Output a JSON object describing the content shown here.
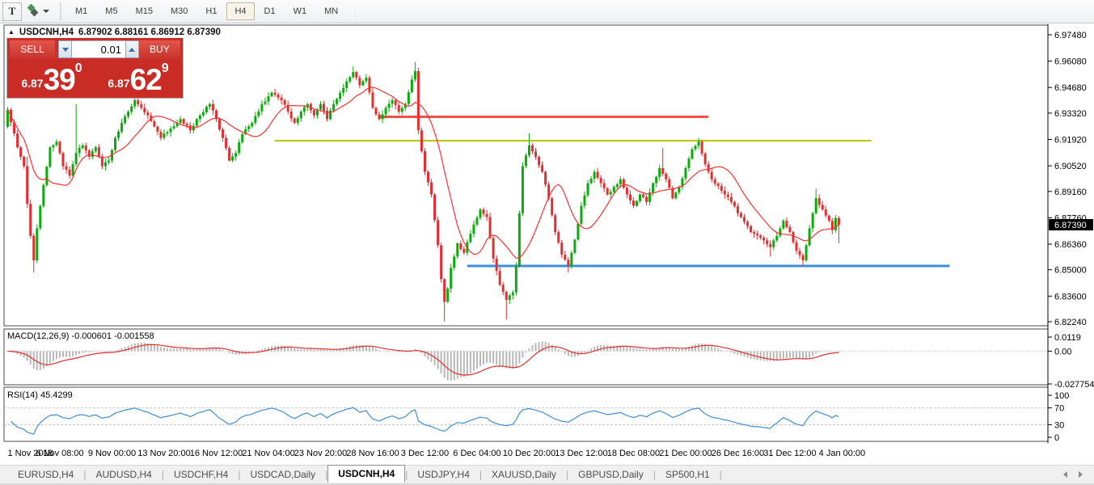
{
  "toolbar": {
    "text_tool_label": "T",
    "timeframes": [
      {
        "label": "M1",
        "active": false
      },
      {
        "label": "M5",
        "active": false
      },
      {
        "label": "M15",
        "active": false
      },
      {
        "label": "M30",
        "active": false
      },
      {
        "label": "H1",
        "active": false
      },
      {
        "label": "H4",
        "active": true
      },
      {
        "label": "D1",
        "active": false
      },
      {
        "label": "W1",
        "active": false
      },
      {
        "label": "MN",
        "active": false
      }
    ]
  },
  "chart": {
    "title_symbol": "USDCNH,H4",
    "title_ohlc": "6.87902 6.88161 6.86912 6.87390",
    "price_badge": "6.87390"
  },
  "trade_panel": {
    "sell_label": "SELL",
    "buy_label": "BUY",
    "volume": "0.01",
    "sell_price": {
      "small": "6.87",
      "big": "39",
      "sup": "0"
    },
    "buy_price": {
      "small": "6.87",
      "big": "62",
      "sup": "9"
    }
  },
  "macd_panel": {
    "label": "MACD(12,26,9)",
    "values": "-0.000601 -0.001558"
  },
  "rsi_panel": {
    "label": "RSI(14)",
    "value": "45.4299"
  },
  "tabs": [
    {
      "label": "EURUSD,H4",
      "active": false
    },
    {
      "label": "AUDUSD,H4",
      "active": false
    },
    {
      "label": "USDCHF,H4",
      "active": false
    },
    {
      "label": "USDCAD,Daily",
      "active": false
    },
    {
      "label": "USDCNH,H4",
      "active": true
    },
    {
      "label": "USDJPY,H4",
      "active": false
    },
    {
      "label": "XAUUSD,Daily",
      "active": false
    },
    {
      "label": "GBPUSD,Daily",
      "active": false
    },
    {
      "label": "SP500,H1",
      "active": false
    }
  ],
  "chart_data": {
    "type": "candlestick",
    "symbol": "USDCNH",
    "timeframe": "H4",
    "n_bars": 256,
    "price_axis_ticks": [
      6.9748,
      6.9608,
      6.9468,
      6.9332,
      6.9192,
      6.9052,
      6.8916,
      6.8776,
      6.8636,
      6.85,
      6.836,
      6.8224
    ],
    "current_price": 6.8739,
    "close_keypoints": [
      [
        0,
        6.935
      ],
      [
        3,
        6.915
      ],
      [
        5,
        6.905
      ],
      [
        6,
        6.885
      ],
      [
        7,
        6.868
      ],
      [
        8,
        6.855
      ],
      [
        9,
        6.872
      ],
      [
        11,
        6.895
      ],
      [
        13,
        6.915
      ],
      [
        15,
        6.918
      ],
      [
        17,
        6.905
      ],
      [
        19,
        6.9
      ],
      [
        21,
        6.912
      ],
      [
        23,
        6.916
      ],
      [
        25,
        6.91
      ],
      [
        27,
        6.915
      ],
      [
        29,
        6.905
      ],
      [
        31,
        6.908
      ],
      [
        33,
        6.92
      ],
      [
        35,
        6.928
      ],
      [
        37,
        6.934
      ],
      [
        39,
        6.94
      ],
      [
        41,
        6.936
      ],
      [
        43,
        6.932
      ],
      [
        45,
        6.926
      ],
      [
        47,
        6.92
      ],
      [
        50,
        6.925
      ],
      [
        53,
        6.93
      ],
      [
        56,
        6.924
      ],
      [
        59,
        6.932
      ],
      [
        62,
        6.938
      ],
      [
        64,
        6.93
      ],
      [
        66,
        6.92
      ],
      [
        68,
        6.908
      ],
      [
        70,
        6.912
      ],
      [
        72,
        6.922
      ],
      [
        75,
        6.928
      ],
      [
        78,
        6.938
      ],
      [
        81,
        6.944
      ],
      [
        84,
        6.94
      ],
      [
        86,
        6.934
      ],
      [
        88,
        6.928
      ],
      [
        90,
        6.934
      ],
      [
        92,
        6.938
      ],
      [
        94,
        6.932
      ],
      [
        96,
        6.938
      ],
      [
        98,
        6.93
      ],
      [
        100,
        6.938
      ],
      [
        102,
        6.944
      ],
      [
        104,
        6.95
      ],
      [
        106,
        6.955
      ],
      [
        108,
        6.948
      ],
      [
        110,
        6.952
      ],
      [
        112,
        6.936
      ],
      [
        114,
        6.93
      ],
      [
        116,
        6.936
      ],
      [
        118,
        6.94
      ],
      [
        120,
        6.934
      ],
      [
        122,
        6.938
      ],
      [
        124,
        6.951
      ],
      [
        125,
        6.9555
      ],
      [
        126,
        6.924
      ],
      [
        128,
        6.902
      ],
      [
        130,
        6.89
      ],
      [
        132,
        6.863
      ],
      [
        133,
        6.845
      ],
      [
        134,
        6.833
      ],
      [
        135,
        6.84
      ],
      [
        136,
        6.851
      ],
      [
        138,
        6.864
      ],
      [
        140,
        6.859
      ],
      [
        143,
        6.874
      ],
      [
        145,
        6.882
      ],
      [
        147,
        6.878
      ],
      [
        149,
        6.856
      ],
      [
        151,
        6.842
      ],
      [
        153,
        6.834
      ],
      [
        155,
        6.838
      ],
      [
        156,
        6.852
      ],
      [
        157,
        6.88
      ],
      [
        158,
        6.905
      ],
      [
        160,
        6.916
      ],
      [
        162,
        6.91
      ],
      [
        164,
        6.902
      ],
      [
        166,
        6.888
      ],
      [
        168,
        6.87
      ],
      [
        170,
        6.858
      ],
      [
        172,
        6.852
      ],
      [
        174,
        6.866
      ],
      [
        176,
        6.884
      ],
      [
        178,
        6.896
      ],
      [
        180,
        6.902
      ],
      [
        182,
        6.896
      ],
      [
        184,
        6.89
      ],
      [
        186,
        6.894
      ],
      [
        188,
        6.898
      ],
      [
        190,
        6.89
      ],
      [
        192,
        6.884
      ],
      [
        194,
        6.89
      ],
      [
        196,
        6.886
      ],
      [
        198,
        6.896
      ],
      [
        200,
        6.904
      ],
      [
        202,
        6.898
      ],
      [
        204,
        6.888
      ],
      [
        206,
        6.894
      ],
      [
        208,
        6.904
      ],
      [
        210,
        6.914
      ],
      [
        212,
        6.918
      ],
      [
        214,
        6.906
      ],
      [
        216,
        6.898
      ],
      [
        219,
        6.892
      ],
      [
        222,
        6.886
      ],
      [
        225,
        6.878
      ],
      [
        228,
        6.87
      ],
      [
        231,
        6.867
      ],
      [
        234,
        6.862
      ],
      [
        236,
        6.868
      ],
      [
        238,
        6.876
      ],
      [
        240,
        6.87
      ],
      [
        242,
        6.86
      ],
      [
        244,
        6.855
      ],
      [
        246,
        6.872
      ],
      [
        248,
        6.888
      ],
      [
        250,
        6.882
      ],
      [
        252,
        6.876
      ],
      [
        253,
        6.871
      ],
      [
        254,
        6.8775
      ],
      [
        255,
        6.8739
      ]
    ],
    "wick_overrides": {
      "6": {
        "h": 6.91
      },
      "8": {
        "l": 6.8485
      },
      "21": {
        "h": 6.938
      },
      "106": {
        "h": 6.958
      },
      "125": {
        "h": 6.9605
      },
      "134": {
        "l": 6.8225
      },
      "153": {
        "l": 6.8235
      },
      "160": {
        "h": 6.9225
      },
      "172": {
        "l": 6.8485
      },
      "201": {
        "h": 6.9147
      },
      "212": {
        "h": 6.92
      },
      "234": {
        "l": 6.857
      },
      "244": {
        "l": 6.852
      },
      "248": {
        "h": 6.893
      },
      "255": {
        "l": 6.864
      }
    },
    "moving_average": {
      "period": 13,
      "color": "#ff3131"
    },
    "horizontal_lines": [
      {
        "name": "resistance-red",
        "price": 6.9312,
        "from_bar": 114,
        "to_bar": 215,
        "color": "#f24f4f",
        "width": 3
      },
      {
        "name": "resistance-olive",
        "price": 6.9185,
        "from_bar": 82,
        "to_bar": 265,
        "color": "#b9c400",
        "width": 2
      },
      {
        "name": "support-blue",
        "price": 6.852,
        "from_bar": 141,
        "to_bar": 289,
        "color": "#3d8fd9",
        "width": 3
      }
    ],
    "macd": {
      "fast": 12,
      "slow": 26,
      "signal": 9,
      "axis_ticks": [
        {
          "v": 0.0119,
          "label": "0.0119"
        },
        {
          "v": 0.0,
          "label": "0.00"
        },
        {
          "v": -0.027754,
          "label": "-0.027754"
        }
      ],
      "hist_color": "#b8b8b8",
      "signal_color": "#e03030"
    },
    "rsi": {
      "period": 14,
      "axis_ticks": [
        100,
        70,
        30,
        0
      ],
      "levels": [
        70,
        30
      ],
      "color": "#3e8ed0"
    },
    "time_labels": [
      "1 Nov 2018",
      "6 Nov 08:00",
      "9 Nov 00:00",
      "13 Nov 20:00",
      "16 Nov 12:00",
      "21 Nov 04:00",
      "23 Nov 20:00",
      "28 Nov 16:00",
      "3 Dec 12:00",
      "6 Dec 04:00",
      "10 Dec 20:00",
      "13 Dec 12:00",
      "18 Dec 08:00",
      "21 Dec 00:00",
      "26 Dec 16:00",
      "31 Dec 12:00",
      "4 Jan 00:00"
    ],
    "colors": {
      "up": "#0cab0c",
      "down": "#e42f2f",
      "axis_text": "#000000",
      "frame": "#4a4a4a",
      "badge_bg": "#000000",
      "badge_text": "#ffffff",
      "dashed_level": "#c8c8c8"
    }
  }
}
